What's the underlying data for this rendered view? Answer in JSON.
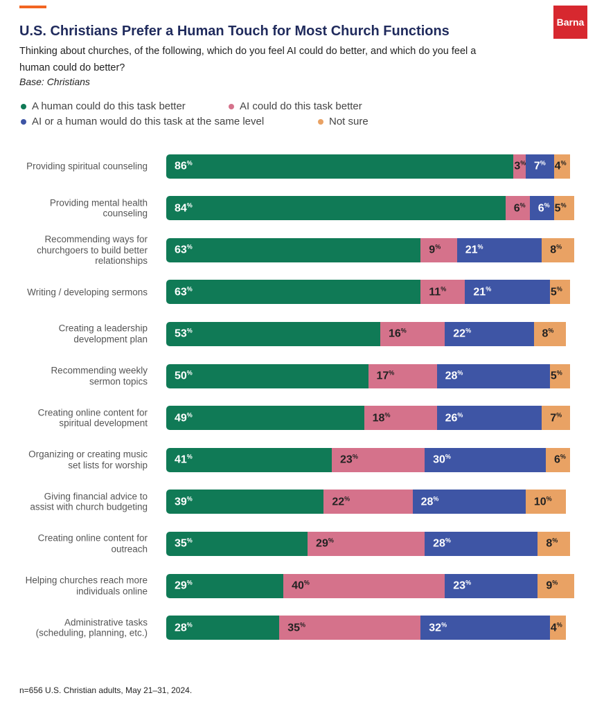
{
  "brand": "Barna",
  "chart_data": {
    "type": "stacked-bar-horizontal",
    "title": "U.S. Christians Prefer a Human Touch for Most Church Functions",
    "subtitle": "Thinking about churches, of the following, which do you feel AI could do better, and which do you feel a human could do better?",
    "base": "Base: Christians",
    "footnote": "n=656 U.S. Christian adults, May 21–31, 2024.",
    "categories": [
      "Providing spiritual counseling",
      "Providing mental health counseling",
      "Recommending ways for churchgoers to build better relationships",
      "Writing / developing sermons",
      "Creating a leadership development plan",
      "Recommending weekly sermon topics",
      "Creating online content for spiritual development",
      "Organizing or creating music set lists for worship",
      "Giving financial advice to assist with church budgeting",
      "Creating online content for outreach",
      "Helping churches reach more individuals online",
      "Administrative tasks (scheduling, planning, etc.)"
    ],
    "series": [
      {
        "name": "A human could do this task better",
        "color": "#107a56",
        "values": [
          86,
          84,
          63,
          63,
          53,
          50,
          49,
          41,
          39,
          35,
          29,
          28
        ],
        "value_labels": [
          "86%",
          "84%",
          "63%",
          "63%",
          "53%",
          "50%",
          "49%",
          "41%",
          "39%",
          "35%",
          "29%",
          "28%"
        ]
      },
      {
        "name": "AI could do this task better",
        "color": "#d5728b",
        "values": [
          3,
          6,
          9,
          11,
          16,
          17,
          18,
          23,
          22,
          29,
          40,
          35
        ],
        "value_labels": [
          "3%",
          "6%",
          "9%",
          "11%",
          "16%",
          "17%",
          "18%",
          "23%",
          "22%",
          "29%",
          "40%",
          "35%"
        ]
      },
      {
        "name": "AI or a human would do this task at the same level",
        "color": "#3e55a5",
        "values": [
          7,
          6,
          21,
          21,
          22,
          28,
          26,
          30,
          28,
          28,
          23,
          32
        ],
        "value_labels": [
          "7%",
          "6%",
          "21%",
          "21%",
          "22%",
          "28%",
          "26%",
          "30%",
          "28%",
          "28%",
          "23%",
          "32%"
        ]
      },
      {
        "name": "Not sure",
        "color": "#e9a264",
        "values": [
          4,
          5,
          8,
          5,
          8,
          5,
          7,
          6,
          10,
          8,
          9,
          4
        ],
        "value_labels": [
          "4%",
          "5%",
          "8%",
          "5%",
          "8%",
          "5%",
          "7%",
          "6%",
          "10%",
          "8%",
          "9%",
          "4%"
        ]
      }
    ]
  }
}
